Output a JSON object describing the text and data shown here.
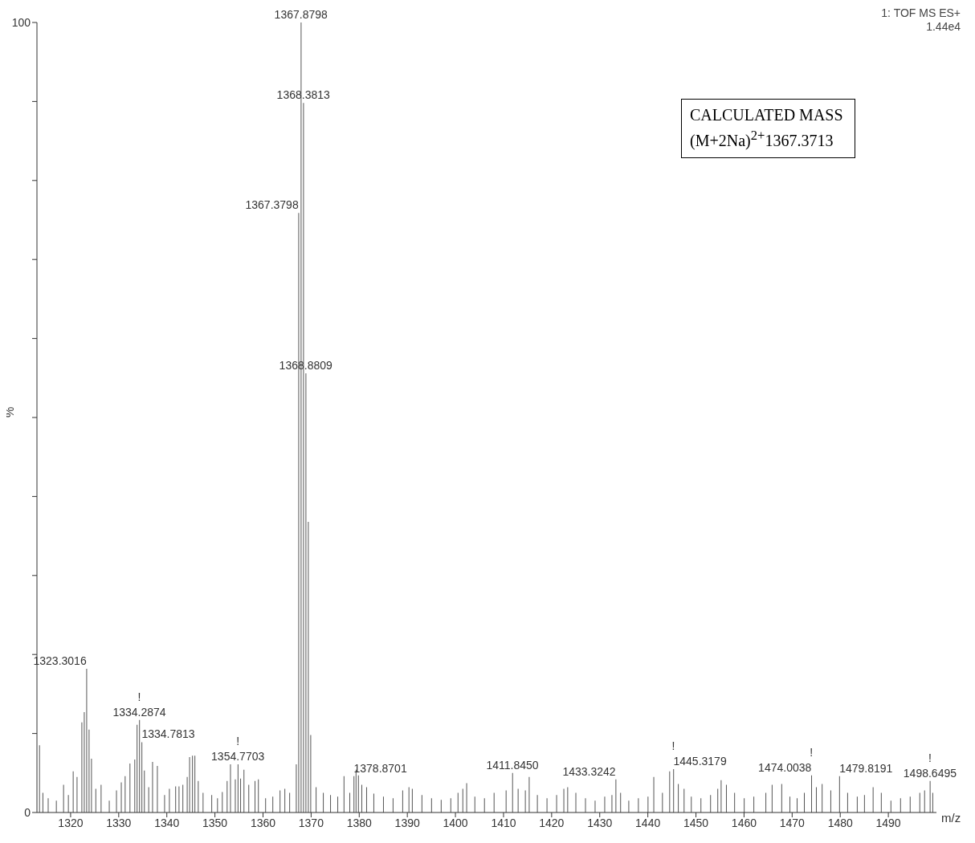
{
  "chart_data": {
    "type": "bar",
    "color": "#555555",
    "ylabel": "%",
    "xlabel": "m/z",
    "x": [
      1313.5,
      1314.2,
      1315.3,
      1317,
      1318.5,
      1319.5,
      1320.5,
      1321.3,
      1322.3,
      1322.8,
      1323.3016,
      1323.8,
      1324.3,
      1325.2,
      1326.3,
      1328,
      1329.5,
      1330.5,
      1331.3,
      1332.3,
      1333.3,
      1333.78,
      1334.2874,
      1334.7813,
      1335.3,
      1336.2,
      1337,
      1338,
      1339.5,
      1340.5,
      1341.8,
      1342.5,
      1343.3,
      1344.2,
      1344.7,
      1345.3,
      1345.8,
      1346.5,
      1347.5,
      1349.3,
      1350.5,
      1351.5,
      1352.5,
      1353.2,
      1354.2,
      1354.7703,
      1355.3,
      1356,
      1357,
      1358.3,
      1359,
      1360.5,
      1362,
      1363.5,
      1364.5,
      1365.5,
      1366.88,
      1367.3798,
      1367.8798,
      1368.3813,
      1368.8809,
      1369.38,
      1369.88,
      1371,
      1372.5,
      1374,
      1375.5,
      1376.8,
      1378,
      1378.8701,
      1379.3,
      1379.8,
      1380.5,
      1381.5,
      1383,
      1385,
      1387,
      1389,
      1390.3,
      1391,
      1393,
      1395,
      1397,
      1399,
      1400.5,
      1401.5,
      1402.3,
      1404,
      1406,
      1408,
      1410.5,
      1411.845,
      1413,
      1414.5,
      1415.3,
      1417,
      1419,
      1421,
      1422.5,
      1423.3,
      1425,
      1427,
      1429,
      1431,
      1432.5,
      1433.3242,
      1434.3,
      1436,
      1438,
      1440,
      1441.2,
      1443,
      1444.5,
      1445.3179,
      1446.3,
      1447.5,
      1449,
      1451,
      1453,
      1454.5,
      1455.2,
      1456.3,
      1458,
      1460,
      1462,
      1464.5,
      1465.8,
      1467.8,
      1469.5,
      1471,
      1472.5,
      1474.0038,
      1475,
      1476.2,
      1478,
      1479.8191,
      1481.5,
      1483.5,
      1485,
      1486.8,
      1488.5,
      1490.5,
      1492.5,
      1494.5,
      1496.5,
      1497.5,
      1498.6495,
      1499.2
    ],
    "values": [
      8.5,
      2.5,
      1.8,
      1.5,
      3.5,
      2.2,
      5.2,
      4.5,
      11.4,
      12.7,
      18.2,
      10.5,
      6.8,
      3.0,
      3.5,
      1.5,
      2.8,
      3.8,
      4.6,
      6.2,
      6.7,
      11.1,
      11.7,
      8.9,
      5.3,
      3.2,
      6.4,
      5.9,
      2.2,
      3.0,
      3.3,
      3.3,
      3.5,
      4.5,
      7.0,
      7.2,
      7.2,
      4.0,
      2.5,
      2.2,
      1.8,
      2.6,
      4.0,
      6.1,
      4.2,
      6.1,
      4.3,
      5.4,
      3.5,
      4.0,
      4.2,
      1.8,
      2.0,
      2.8,
      3.0,
      2.5,
      6.1,
      75.9,
      100,
      89.8,
      55.6,
      36.8,
      9.8,
      3.2,
      2.5,
      2.2,
      2.0,
      4.6,
      2.5,
      4.6,
      5.4,
      4.7,
      3.5,
      3.2,
      2.4,
      2.0,
      1.8,
      2.8,
      3.2,
      3.0,
      2.2,
      1.8,
      1.6,
      1.8,
      2.5,
      3.0,
      3.7,
      2.0,
      1.8,
      2.5,
      2.8,
      5.0,
      3.0,
      2.8,
      4.5,
      2.2,
      1.8,
      2.2,
      3.0,
      3.2,
      2.5,
      1.8,
      1.5,
      2.0,
      2.2,
      4.2,
      2.5,
      1.5,
      1.8,
      2.0,
      4.5,
      2.5,
      5.2,
      5.5,
      3.6,
      3.0,
      2.0,
      1.8,
      2.2,
      3.0,
      4.1,
      3.5,
      2.5,
      1.8,
      2.0,
      2.5,
      3.5,
      3.6,
      2.0,
      1.8,
      2.5,
      4.7,
      3.2,
      3.6,
      2.8,
      4.6,
      2.5,
      2.0,
      2.2,
      3.2,
      2.5,
      1.5,
      1.8,
      2.0,
      2.5,
      2.8,
      4.0,
      2.5
    ],
    "xlim": [
      1313,
      1500
    ],
    "xticks": [
      1320,
      1330,
      1340,
      1350,
      1360,
      1370,
      1380,
      1390,
      1400,
      1410,
      1420,
      1430,
      1440,
      1450,
      1460,
      1470,
      1480,
      1490
    ],
    "ylim": [
      0,
      100
    ],
    "yticks": [
      0,
      {
        "value": 10,
        "label": null
      },
      {
        "value": 20,
        "label": null
      },
      {
        "value": 30,
        "label": null
      },
      {
        "value": 40,
        "label": null
      },
      {
        "value": 50,
        "label": null
      },
      {
        "value": 60,
        "label": null
      },
      {
        "value": 70,
        "label": null
      },
      {
        "value": 80,
        "label": null
      },
      {
        "value": 90,
        "label": null
      },
      100
    ],
    "annotations": [
      "1: TOF MS ES+",
      "1.44e4",
      "CALCULATED MASS",
      "(M+2Na)$^{2+}$1367.3713",
      {
        "text": "1367.8798",
        "x": 1367.8798,
        "y": 100
      },
      {
        "text": "1368.3813",
        "x": 1368.3813,
        "y": 89.8
      },
      {
        "text": "1367.3798",
        "x": 1367.3798,
        "y": 75.9
      },
      {
        "text": "1368.8809",
        "x": 1368.8809,
        "y": 55.6
      },
      {
        "text": "1323.3016",
        "x": 1323.3016,
        "y": 18.2
      },
      {
        "text": "!",
        "x": 1334.2874,
        "y": 11.7
      },
      {
        "text": "1334.2874",
        "x": 1334.2874,
        "y": 11.7
      },
      {
        "text": "1334.7813",
        "x": 1334.7813,
        "y": 8.9
      },
      {
        "text": "!",
        "x": 1354.7703,
        "y": 6.1
      },
      {
        "text": "1354.7703",
        "x": 1354.7703,
        "y": 6.1
      },
      {
        "text": "1378.8701",
        "x": 1378.8701,
        "y": 4.6
      },
      {
        "text": "1411.8450",
        "x": 1411.845,
        "y": 5.0
      },
      {
        "text": "1433.3242",
        "x": 1433.3242,
        "y": 4.2
      },
      {
        "text": "!",
        "x": 1445.3179,
        "y": 5.5
      },
      {
        "text": "1445.3179",
        "x": 1445.3179,
        "y": 5.5
      },
      {
        "text": "!",
        "x": 1474.0038,
        "y": 4.7
      },
      {
        "text": "1474.0038",
        "x": 1474.0038,
        "y": 4.7
      },
      {
        "text": "1479.8191",
        "x": 1479.8191,
        "y": 4.6
      },
      {
        "text": "!",
        "x": 1498.6495,
        "y": 4.0
      },
      {
        "text": "1498.6495",
        "x": 1498.6495,
        "y": 4.0
      }
    ]
  }
}
